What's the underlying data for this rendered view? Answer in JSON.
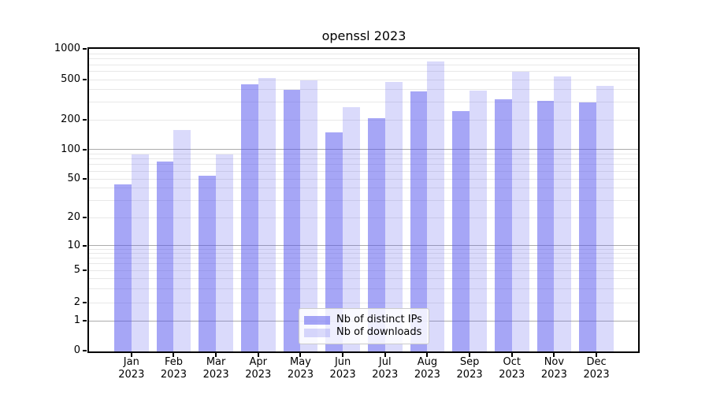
{
  "figure": {
    "title": "openssl 2023"
  },
  "chart_data": {
    "type": "bar",
    "title": "openssl 2023",
    "categories": [
      "Jan",
      "Feb",
      "Mar",
      "Apr",
      "May",
      "Jun",
      "Jul",
      "Aug",
      "Sep",
      "Oct",
      "Nov",
      "Dec"
    ],
    "category_year": "2023",
    "series": [
      {
        "name": "Nb of distinct IPs",
        "color": "rgba(85,85,238,0.52)",
        "approx_hex_over_white": "#a7a7f6",
        "values": [
          44,
          75,
          54,
          450,
          400,
          150,
          210,
          380,
          245,
          320,
          308,
          297
        ]
      },
      {
        "name": "Nb of downloads",
        "color": "rgba(85,85,238,0.22)",
        "approx_hex_over_white": "#dadafb",
        "values": [
          89,
          157,
          89,
          520,
          495,
          270,
          470,
          750,
          390,
          595,
          535,
          437
        ]
      }
    ],
    "xlabel": "",
    "ylabel": "",
    "yscale": "log (symlog: 0 shown at axis bottom)",
    "y_ticks": [
      0,
      1,
      2,
      5,
      10,
      20,
      50,
      100,
      200,
      500,
      1000
    ],
    "ylim": [
      0,
      1000
    ],
    "grid": true,
    "grid_major_at": [
      1,
      10,
      100
    ],
    "legend_position": "lower center"
  }
}
